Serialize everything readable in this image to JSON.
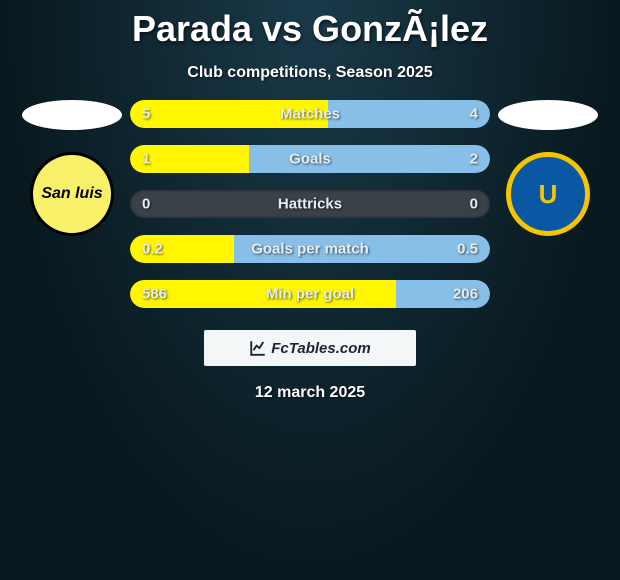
{
  "title": "Parada vs GonzÃ¡lez",
  "subtitle": "Club competitions, Season 2025",
  "date": "12 march 2025",
  "brand_label": "FcTables.com",
  "left_player": {
    "pill_bg": "#ffffff",
    "badge_bg": "#f7f068",
    "badge_border": "#000000",
    "badge_text": "San luis",
    "badge_text_color": "#000000",
    "fill_color": "#fff600"
  },
  "right_player": {
    "pill_bg": "#ffffff",
    "badge_bg": "#0a57a3",
    "badge_border": "#f6c400",
    "badge_text": "U",
    "badge_text_color": "#f6c400",
    "fill_color": "#88bfe8"
  },
  "bar_track_color": "#3b4148",
  "stats": [
    {
      "label": "Matches",
      "left_val": "5",
      "right_val": "4",
      "left_pct": 55,
      "right_pct": 45
    },
    {
      "label": "Goals",
      "left_val": "1",
      "right_val": "2",
      "left_pct": 33,
      "right_pct": 67
    },
    {
      "label": "Hattricks",
      "left_val": "0",
      "right_val": "0",
      "left_pct": 0,
      "right_pct": 0
    },
    {
      "label": "Goals per match",
      "left_val": "0.2",
      "right_val": "0.5",
      "left_pct": 29,
      "right_pct": 71
    },
    {
      "label": "Min per goal",
      "left_val": "586",
      "right_val": "206",
      "left_pct": 74,
      "right_pct": 26
    }
  ]
}
